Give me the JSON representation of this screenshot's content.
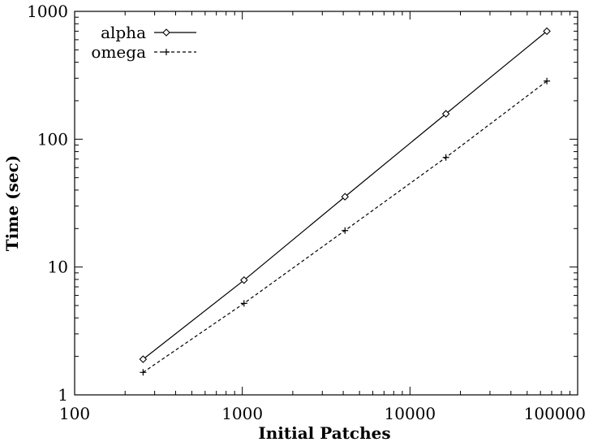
{
  "chart_data": {
    "type": "line",
    "xlabel": "Initial Patches",
    "ylabel": "Time (sec)",
    "xscale": "log",
    "yscale": "log",
    "xlim": [
      100,
      100000
    ],
    "ylim": [
      1,
      1000
    ],
    "x_ticks": [
      100,
      1000,
      10000,
      100000
    ],
    "x_tick_labels": [
      "100",
      "1000",
      "10000",
      "100000"
    ],
    "y_ticks": [
      1,
      10,
      100,
      1000
    ],
    "y_tick_labels": [
      "1",
      "10",
      "100",
      "1000"
    ],
    "grid": false,
    "legend_position": "top-left",
    "series": [
      {
        "name": "alpha",
        "marker": "diamond",
        "line_style": "solid",
        "color": "#000000",
        "x": [
          256,
          1024,
          4096,
          16384,
          65536
        ],
        "y": [
          1.9,
          7.9,
          35.5,
          158,
          700
        ]
      },
      {
        "name": "omega",
        "marker": "plus",
        "line_style": "dashed",
        "color": "#000000",
        "x": [
          256,
          1024,
          4096,
          16384,
          65536
        ],
        "y": [
          1.5,
          5.2,
          19.3,
          72,
          285
        ]
      }
    ]
  }
}
